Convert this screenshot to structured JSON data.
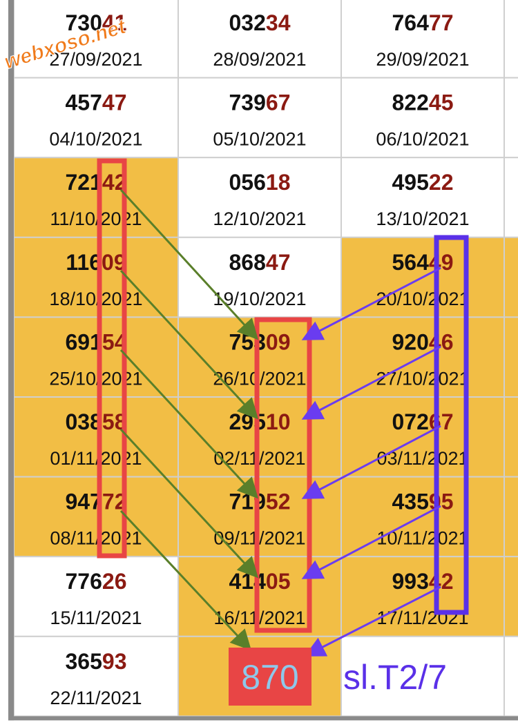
{
  "watermark": "webxoso.net",
  "rows": [
    [
      {
        "head": "730",
        "tail": "41",
        "date": "27/09/2021",
        "highlight": false
      },
      {
        "head": "032",
        "tail": "34",
        "date": "28/09/2021",
        "highlight": false
      },
      {
        "head": "764",
        "tail": "77",
        "date": "29/09/2021",
        "highlight": false
      }
    ],
    [
      {
        "head": "457",
        "tail": "47",
        "date": "04/10/2021",
        "highlight": false
      },
      {
        "head": "739",
        "tail": "67",
        "date": "05/10/2021",
        "highlight": false
      },
      {
        "head": "822",
        "tail": "45",
        "date": "06/10/2021",
        "highlight": false
      }
    ],
    [
      {
        "head": "721",
        "tail": "42",
        "date": "11/10/2021",
        "highlight": true
      },
      {
        "head": "056",
        "tail": "18",
        "date": "12/10/2021",
        "highlight": false
      },
      {
        "head": "495",
        "tail": "22",
        "date": "13/10/2021",
        "highlight": false
      }
    ],
    [
      {
        "head": "116",
        "tail": "09",
        "date": "18/10/2021",
        "highlight": true
      },
      {
        "head": "868",
        "tail": "47",
        "date": "19/10/2021",
        "highlight": false
      },
      {
        "head": "564",
        "tail": "49",
        "date": "20/10/2021",
        "highlight": true
      }
    ],
    [
      {
        "head": "691",
        "tail": "54",
        "date": "25/10/2021",
        "highlight": true
      },
      {
        "head": "753",
        "tail": "09",
        "date": "26/10/2021",
        "highlight": true
      },
      {
        "head": "920",
        "tail": "46",
        "date": "27/10/2021",
        "highlight": true
      }
    ],
    [
      {
        "head": "038",
        "tail": "58",
        "date": "01/11/2021",
        "highlight": true
      },
      {
        "head": "295",
        "tail": "10",
        "date": "02/11/2021",
        "highlight": true
      },
      {
        "head": "072",
        "tail": "67",
        "date": "03/11/2021",
        "highlight": true
      }
    ],
    [
      {
        "head": "947",
        "tail": "72",
        "date": "08/11/2021",
        "highlight": true
      },
      {
        "head": "719",
        "tail": "52",
        "date": "09/11/2021",
        "highlight": true
      },
      {
        "head": "435",
        "tail": "95",
        "date": "10/11/2021",
        "highlight": true
      }
    ],
    [
      {
        "head": "776",
        "tail": "26",
        "date": "15/11/2021",
        "highlight": false
      },
      {
        "head": "414",
        "tail": "05",
        "date": "16/11/2021",
        "highlight": true
      },
      {
        "head": "993",
        "tail": "42",
        "date": "17/11/2021",
        "highlight": true
      }
    ],
    [
      {
        "head": "365",
        "tail": "93",
        "date": "22/11/2021",
        "highlight": false
      },
      {
        "highlight": true
      },
      {
        "highlight": false
      }
    ]
  ],
  "result_box": "870",
  "note": "sl.T2/7"
}
